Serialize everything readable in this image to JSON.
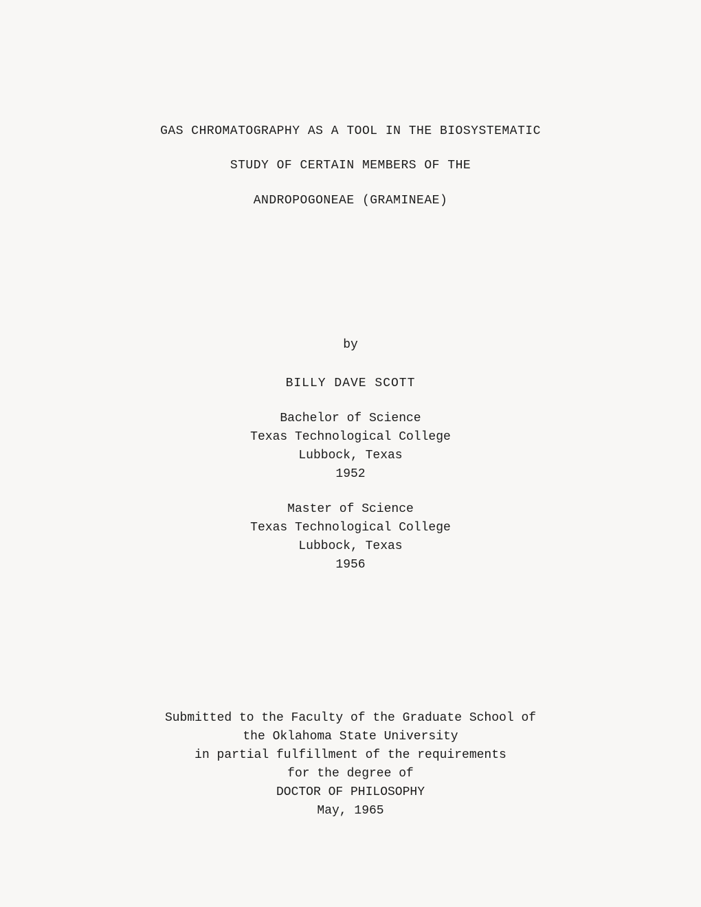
{
  "title": {
    "line1": "GAS CHROMATOGRAPHY AS A TOOL IN THE BIOSYSTEMATIC",
    "line2": "STUDY OF CERTAIN MEMBERS OF THE",
    "line3": "ANDROPOGONEAE (GRAMINEAE)"
  },
  "by": "by",
  "author": "BILLY DAVE SCOTT",
  "degree1": {
    "degree": "Bachelor of Science",
    "school": "Texas Technological College",
    "location": "Lubbock, Texas",
    "year": "1952"
  },
  "degree2": {
    "degree": "Master of Science",
    "school": "Texas Technological College",
    "location": "Lubbock, Texas",
    "year": "1956"
  },
  "submitted": {
    "line1": "Submitted to the Faculty of the Graduate School of",
    "line2": "the Oklahoma State University",
    "line3": "in partial fulfillment of the requirements",
    "line4": "for the degree of",
    "line5": "DOCTOR OF PHILOSOPHY",
    "line6": "May, 1965"
  }
}
